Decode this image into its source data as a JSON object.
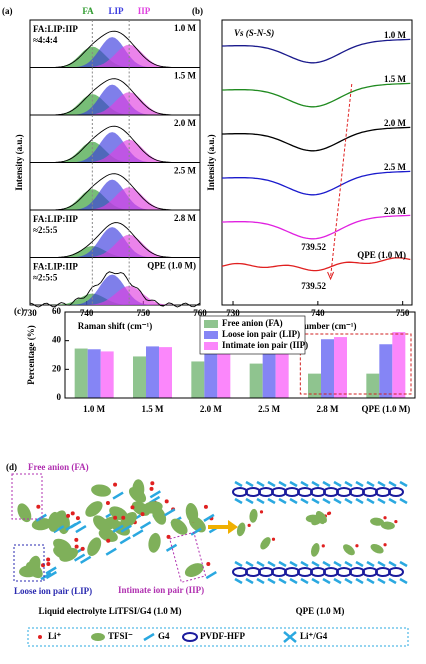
{
  "chart_data": [
    {
      "type": "line",
      "label": "(a)",
      "xlabel": "Raman shift (cm⁻¹)",
      "ylabel": "Intensity (a.u.)",
      "xlim": [
        730,
        760
      ],
      "xticks": [
        730,
        740,
        750,
        760
      ],
      "legend": [
        {
          "name": "FA",
          "color": "#2e9b2e"
        },
        {
          "name": "LIP",
          "color": "#3a3adf"
        },
        {
          "name": "IIP",
          "color": "#e040e0"
        }
      ],
      "traces": [
        "1.0 M",
        "1.5 M",
        "2.0 M",
        "2.5 M",
        "2.8 M",
        "QPE (1.0 M)"
      ],
      "ratios": [
        [
          "FA:LIP:IIP",
          "≈4:4:4"
        ],
        [
          "FA:LIP:IIP",
          "≈2:5:5"
        ],
        [
          "FA:LIP:IIP",
          "≈2:5:5"
        ]
      ]
    },
    {
      "type": "line",
      "label": "(b)",
      "xlabel": "Wavenumber (cm⁻¹)",
      "ylabel": "Intensity (a.u.)",
      "annotation": "Vs (S-N-S)",
      "xlim": [
        728.7,
        751.1
      ],
      "xticks": [
        730,
        740,
        750
      ],
      "traces": [
        "1.0 M",
        "1.5 M",
        "2.0 M",
        "2.5 M",
        "2.8 M",
        "QPE (1.0 M)"
      ],
      "colors": [
        "#1a1a8c",
        "#1f8a1f",
        "#000000",
        "#1a1acc",
        "#e020e0",
        "#e02020"
      ],
      "peak_labels": [
        "739.52",
        "739.52"
      ]
    },
    {
      "type": "bar",
      "label": "(c)",
      "ylabel": "Percentage (%)",
      "categories": [
        "1.0 M",
        "1.5 M",
        "2.0 M",
        "2.5 M",
        "2.8 M",
        "QPE (1.0 M)"
      ],
      "series": [
        {
          "name": "Free anion (FA)",
          "color": "#8fc48f",
          "values": [
            34.5,
            29,
            25.5,
            24,
            17,
            17
          ]
        },
        {
          "name": "Loose ion pair (LIP)",
          "color": "#8585f5",
          "values": [
            34,
            36,
            37.5,
            38,
            41,
            37.5
          ]
        },
        {
          "name": "Intimate ion pair (IIP)",
          "color": "#fb87fb",
          "values": [
            32.5,
            35.5,
            37,
            39,
            42.5,
            46
          ]
        }
      ],
      "ylim": [
        0,
        60
      ],
      "yticks": [
        0,
        20,
        40,
        60
      ]
    }
  ],
  "diagram": {
    "label": "(d)",
    "fa": "Free anion (FA)",
    "lip": "Loose ion pair (LIP)",
    "iip": "Intimate ion pair (IIP)",
    "left_caption": "Liquid electrolyte LiTFSI/G4 (1.0 M)",
    "right_caption": "QPE (1.0 M)",
    "legend": [
      "Li⁺",
      "TFSI⁻",
      "G4",
      "PVDF-HFP",
      "Li⁺/G4"
    ]
  }
}
